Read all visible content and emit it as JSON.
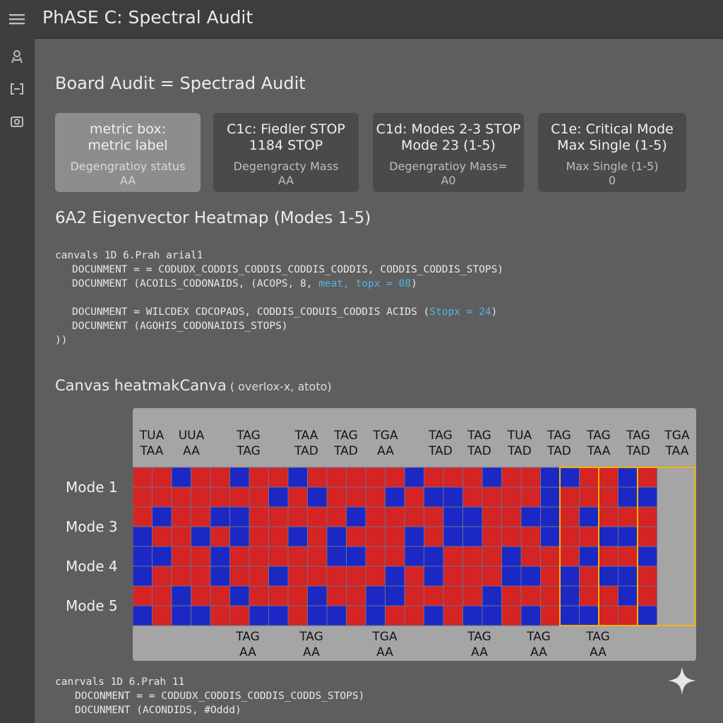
{
  "app": {
    "title": "PhASE C: Spectral Audit"
  },
  "rail": {
    "icons": [
      "menu-icon",
      "user-icon",
      "bracket-icon",
      "camera-icon"
    ]
  },
  "board": {
    "title": "Board Audit = Spectrad Audit"
  },
  "metrics": [
    {
      "label1": "metric box:",
      "label2": "metric label",
      "status1": "Degengratioy status",
      "status2": "AA"
    },
    {
      "label1": "C1c: Fiedler STOP",
      "label2": "1184 STOP",
      "status1": "Degengracty Mass",
      "status2": "AA"
    },
    {
      "label1": "C1d: Modes 2-3 STOP",
      "label2": "Mode 23 (1-5)",
      "status1": "Degengratioy Mass=",
      "status2": "A0"
    },
    {
      "label1": "C1e: Critical Mode",
      "label2": "Max Single (1-5)",
      "status1": "Max Single (1-5)",
      "status2": "0"
    }
  ],
  "heatmap_section": {
    "title": "6A2 Eigenvector Heatmap (Modes 1-5)"
  },
  "code1": {
    "l1": "canvals 1D 6.Prah arial1",
    "l2": "DOCUNMENT = = CODUDX_CODDIS_CODDIS_CODDIS_CODDIS, CODDIS_CODDIS_STOPS)",
    "l3a": "DOCUNMENT (ACOILS_CODONAIDS, (ACOPS, 8, ",
    "l3b": "meat, topx = 08",
    "l3c": ")",
    "l4a": "DOCUNMENT = WILCDEX CDCOPADS, CODDIS_CODUIS_CODDIS ACIDS (",
    "l4b": "Stopx = 24",
    "l4c": ")",
    "l5": "DOCUNMENT (AGOHIS_CODONAIDIS_STOPS)",
    "l6": "))"
  },
  "canvas": {
    "title": "Canvas heatmakCanva",
    "note": "( overlox-x, atoto)"
  },
  "heatmap": {
    "top_labels": [
      [
        "TUA",
        "TAA"
      ],
      [
        "UUA",
        "AA"
      ],
      [
        "TAG",
        "TAG"
      ],
      [
        "TAA",
        "TAD"
      ],
      [
        "TAG",
        "TAD"
      ],
      [
        "TGA",
        "AA"
      ],
      [
        "TAG",
        "TAD"
      ],
      [
        "TAG",
        "TAD"
      ],
      [
        "TUA",
        "TAD"
      ],
      [
        "TAG",
        "TAD"
      ],
      [
        "TAG",
        "TAA"
      ],
      [
        "TAG",
        "TAD"
      ],
      [
        "TGA",
        "TAA"
      ]
    ],
    "bottom_labels": [
      [
        "TAG",
        "AA"
      ],
      [
        "TAG",
        "AA"
      ],
      [
        "TGA",
        "AA"
      ],
      [
        "TAG",
        "AA"
      ],
      [
        "TAG",
        "AA"
      ],
      [
        "TAG",
        "AA"
      ]
    ],
    "mode_labels": [
      "Mode 1",
      "Mode 3",
      "Mode 4",
      "Mode 5"
    ],
    "colors": {
      "red": "#d42424",
      "blue": "#1c28c4",
      "grid": "#6f6f8a",
      "highlight": "#f0b400"
    },
    "rows": [
      "RRBRRBRRBRRRRRBRRRBRRBBRRBR",
      "RRRRRRRBRBRRRBRBBRRRRBRRRBB",
      "RBRRBBRRRRRBRRRRBBRRBBRBRRR",
      "BRRBRBRRBRBRRRBRBBRRRBRRBBR",
      "BBRRBRRRRRBBRRBBRRRBRRRBRRB",
      "BRRRBRRBRRRRRBRBRRRBBRBRBBR",
      "RRBRRBRRRBRRBBRRRRBRRRBRRBR",
      "BRBBRRBBRBBRBRRBRBBRBRBBRRB"
    ]
  },
  "code2": {
    "l1": "canrvals 1D 6.Prah 11",
    "l2": "DOCONMENT = = CODUDX_CODDIS_CODDIS_CODDS_STOPS)",
    "l3": "DOCUNMENT (ACONDIDS, #Oddd)"
  }
}
